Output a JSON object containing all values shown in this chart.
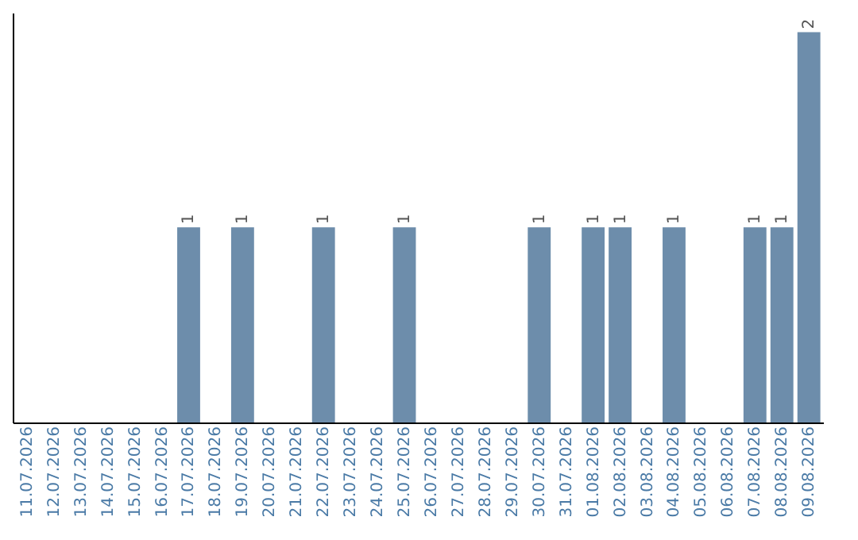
{
  "chart_data": {
    "type": "bar",
    "categories": [
      "11.07.2026",
      "12.07.2026",
      "13.07.2026",
      "14.07.2026",
      "15.07.2026",
      "16.07.2026",
      "17.07.2026",
      "18.07.2026",
      "19.07.2026",
      "20.07.2026",
      "21.07.2026",
      "22.07.2026",
      "23.07.2026",
      "24.07.2026",
      "25.07.2026",
      "26.07.2026",
      "27.07.2026",
      "28.07.2026",
      "29.07.2026",
      "30.07.2026",
      "31.07.2026",
      "01.08.2026",
      "02.08.2026",
      "03.08.2026",
      "04.08.2026",
      "05.08.2026",
      "06.08.2026",
      "07.08.2026",
      "08.08.2026",
      "09.08.2026"
    ],
    "values": [
      0,
      0,
      0,
      0,
      0,
      0,
      1,
      0,
      1,
      0,
      0,
      1,
      0,
      0,
      1,
      0,
      0,
      0,
      0,
      1,
      0,
      1,
      1,
      0,
      1,
      0,
      0,
      1,
      1,
      2
    ],
    "value_labels": [
      null,
      null,
      null,
      null,
      null,
      null,
      "1",
      null,
      "1",
      null,
      null,
      "1",
      null,
      null,
      "1",
      null,
      null,
      null,
      null,
      "1",
      null,
      "1",
      "1",
      null,
      "1",
      null,
      null,
      "1",
      "1",
      "2"
    ],
    "color": "#6d8dab",
    "tick_labels": "x",
    "grid": false
  }
}
